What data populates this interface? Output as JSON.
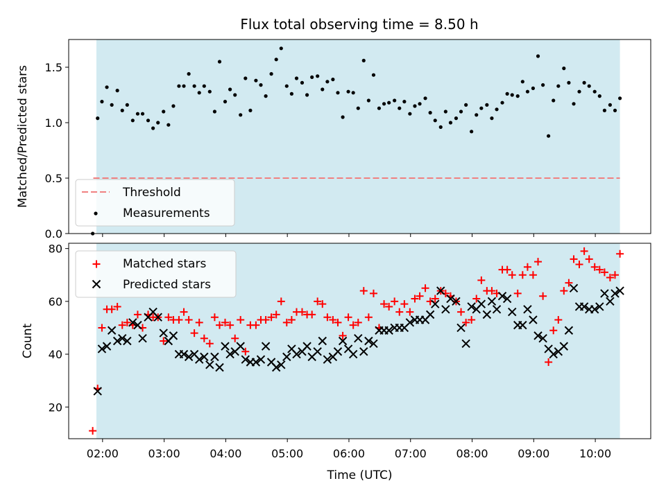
{
  "title": "Flux total observing time = 8.50 h",
  "colors": {
    "shade": "#add8e6",
    "threshold": "#f08080",
    "matched": "#ff0000",
    "predicted": "#000000",
    "measurement": "#000000"
  },
  "chart_data": [
    {
      "type": "scatter",
      "panel": "top",
      "ylabel": "Matched/Predicted stars",
      "xlabel": "",
      "xlim": [
        1.45,
        10.9
      ],
      "ylim": [
        0.0,
        1.75
      ],
      "yticks": [
        0.0,
        0.5,
        1.0,
        1.5
      ],
      "ytick_labels": [
        "0.0",
        "0.5",
        "1.0",
        "1.5"
      ],
      "shaded_span": [
        1.9,
        10.4
      ],
      "grid": false,
      "legend_placement": "lower-left",
      "threshold": {
        "name": "Threshold",
        "y": 0.5,
        "x": [
          1.85,
          10.4
        ]
      },
      "series": [
        {
          "name": "Measurements",
          "marker": "dot",
          "x": [
            1.84,
            1.92,
            1.99,
            2.07,
            2.15,
            2.24,
            2.32,
            2.4,
            2.49,
            2.57,
            2.65,
            2.74,
            2.82,
            2.9,
            2.99,
            3.07,
            3.15,
            3.24,
            3.32,
            3.4,
            3.49,
            3.57,
            3.65,
            3.74,
            3.82,
            3.9,
            3.99,
            4.07,
            4.15,
            4.24,
            4.32,
            4.4,
            4.49,
            4.57,
            4.65,
            4.74,
            4.82,
            4.9,
            4.99,
            5.07,
            5.15,
            5.24,
            5.32,
            5.4,
            5.49,
            5.57,
            5.65,
            5.74,
            5.82,
            5.9,
            5.99,
            6.07,
            6.15,
            6.24,
            6.32,
            6.4,
            6.49,
            6.57,
            6.65,
            6.74,
            6.82,
            6.9,
            6.99,
            7.07,
            7.15,
            7.24,
            7.32,
            7.4,
            7.49,
            7.57,
            7.65,
            7.74,
            7.82,
            7.9,
            7.99,
            8.07,
            8.15,
            8.24,
            8.32,
            8.4,
            8.49,
            8.57,
            8.65,
            8.74,
            8.82,
            8.9,
            8.99,
            9.07,
            9.15,
            9.24,
            9.32,
            9.4,
            9.49,
            9.57,
            9.65,
            9.74,
            9.82,
            9.9,
            9.99,
            10.07,
            10.15,
            10.24,
            10.32,
            10.4
          ],
          "y": [
            0.0,
            1.04,
            1.19,
            1.32,
            1.16,
            1.29,
            1.11,
            1.16,
            1.02,
            1.08,
            1.08,
            1.02,
            0.95,
            1.0,
            1.1,
            0.98,
            1.15,
            1.33,
            1.33,
            1.44,
            1.33,
            1.27,
            1.33,
            1.28,
            1.1,
            1.55,
            1.19,
            1.3,
            1.25,
            1.07,
            1.4,
            1.11,
            1.38,
            1.34,
            1.24,
            1.44,
            1.57,
            1.67,
            1.33,
            1.26,
            1.4,
            1.36,
            1.25,
            1.41,
            1.42,
            1.3,
            1.37,
            1.39,
            1.27,
            1.05,
            1.28,
            1.27,
            1.13,
            1.56,
            1.2,
            1.43,
            1.13,
            1.17,
            1.18,
            1.2,
            1.13,
            1.19,
            1.08,
            1.15,
            1.17,
            1.22,
            1.09,
            1.02,
            0.96,
            1.1,
            1.0,
            1.04,
            1.1,
            1.16,
            0.92,
            1.07,
            1.13,
            1.16,
            1.04,
            1.12,
            1.18,
            1.26,
            1.25,
            1.24,
            1.37,
            1.28,
            1.31,
            1.6,
            1.34,
            0.88,
            1.2,
            1.33,
            1.49,
            1.36,
            1.17,
            1.28,
            1.36,
            1.33,
            1.28,
            1.24,
            1.11,
            1.16,
            1.11,
            1.22
          ]
        }
      ]
    },
    {
      "type": "scatter",
      "panel": "bottom",
      "ylabel": "Count",
      "xlabel": "Time (UTC)",
      "xlim": [
        1.45,
        10.9
      ],
      "ylim": [
        8,
        82
      ],
      "xticks": [
        2,
        3,
        4,
        5,
        6,
        7,
        8,
        9,
        10
      ],
      "xtick_labels": [
        "02:00",
        "03:00",
        "04:00",
        "05:00",
        "06:00",
        "07:00",
        "08:00",
        "09:00",
        "10:00"
      ],
      "yticks": [
        20,
        40,
        60,
        80
      ],
      "ytick_labels": [
        "20",
        "40",
        "60",
        "80"
      ],
      "shaded_span": [
        1.9,
        10.4
      ],
      "grid": false,
      "legend_placement": "upper-left",
      "series": [
        {
          "name": "Matched stars",
          "marker": "plus",
          "x": [
            1.84,
            1.92,
            1.99,
            2.07,
            2.15,
            2.24,
            2.32,
            2.4,
            2.49,
            2.57,
            2.65,
            2.74,
            2.82,
            2.9,
            2.99,
            3.07,
            3.15,
            3.24,
            3.32,
            3.4,
            3.49,
            3.57,
            3.65,
            3.74,
            3.82,
            3.9,
            3.99,
            4.07,
            4.15,
            4.24,
            4.32,
            4.4,
            4.49,
            4.57,
            4.65,
            4.74,
            4.82,
            4.9,
            4.99,
            5.07,
            5.15,
            5.24,
            5.32,
            5.4,
            5.49,
            5.57,
            5.65,
            5.74,
            5.82,
            5.9,
            5.99,
            6.07,
            6.15,
            6.24,
            6.32,
            6.4,
            6.49,
            6.57,
            6.65,
            6.74,
            6.82,
            6.9,
            6.99,
            7.07,
            7.15,
            7.24,
            7.32,
            7.4,
            7.49,
            7.57,
            7.65,
            7.74,
            7.82,
            7.9,
            7.99,
            8.07,
            8.15,
            8.24,
            8.32,
            8.4,
            8.49,
            8.57,
            8.65,
            8.74,
            8.82,
            8.9,
            8.99,
            9.07,
            9.15,
            9.24,
            9.32,
            9.4,
            9.49,
            9.57,
            9.65,
            9.74,
            9.82,
            9.9,
            9.99,
            10.07,
            10.15,
            10.24,
            10.32,
            10.4
          ],
          "y": [
            11,
            27,
            50,
            57,
            57,
            58,
            51,
            52,
            51,
            55,
            50,
            55,
            54,
            54,
            45,
            54,
            53,
            53,
            56,
            53,
            48,
            52,
            46,
            44,
            54,
            51,
            52,
            51,
            46,
            53,
            41,
            51,
            51,
            53,
            53,
            54,
            55,
            60,
            52,
            53,
            56,
            56,
            55,
            55,
            60,
            59,
            54,
            53,
            52,
            47,
            54,
            51,
            52,
            64,
            54,
            63,
            50,
            59,
            58,
            60,
            56,
            59,
            56,
            61,
            62,
            65,
            60,
            61,
            64,
            63,
            62,
            60,
            56,
            52,
            53,
            61,
            68,
            64,
            64,
            63,
            72,
            72,
            70,
            63,
            70,
            73,
            70,
            75,
            62,
            37,
            49,
            53,
            64,
            67,
            76,
            74,
            79,
            76,
            73,
            72,
            71,
            69,
            70,
            78
          ]
        },
        {
          "name": "Predicted stars",
          "marker": "x",
          "x": [
            1.92,
            1.99,
            2.07,
            2.15,
            2.24,
            2.32,
            2.4,
            2.49,
            2.57,
            2.65,
            2.74,
            2.82,
            2.9,
            2.99,
            3.07,
            3.15,
            3.24,
            3.32,
            3.4,
            3.49,
            3.57,
            3.65,
            3.74,
            3.82,
            3.9,
            3.99,
            4.07,
            4.15,
            4.24,
            4.32,
            4.4,
            4.49,
            4.57,
            4.65,
            4.74,
            4.82,
            4.9,
            4.99,
            5.07,
            5.15,
            5.24,
            5.32,
            5.4,
            5.49,
            5.57,
            5.65,
            5.74,
            5.82,
            5.9,
            5.99,
            6.07,
            6.15,
            6.24,
            6.32,
            6.4,
            6.49,
            6.57,
            6.65,
            6.74,
            6.82,
            6.9,
            6.99,
            7.07,
            7.15,
            7.24,
            7.32,
            7.4,
            7.49,
            7.57,
            7.65,
            7.74,
            7.82,
            7.9,
            7.99,
            8.07,
            8.15,
            8.24,
            8.32,
            8.4,
            8.49,
            8.57,
            8.65,
            8.74,
            8.82,
            8.9,
            8.99,
            9.07,
            9.15,
            9.24,
            9.32,
            9.4,
            9.49,
            9.57,
            9.65,
            9.74,
            9.82,
            9.9,
            9.99,
            10.07,
            10.15,
            10.24,
            10.32,
            10.4
          ],
          "y": [
            26,
            42,
            43,
            49,
            45,
            46,
            45,
            52,
            51,
            46,
            54,
            56,
            54,
            48,
            45,
            47,
            40,
            40,
            39,
            40,
            38,
            39,
            36,
            39,
            35,
            43,
            40,
            41,
            43,
            38,
            37,
            37,
            38,
            43,
            37,
            35,
            36,
            39,
            42,
            40,
            41,
            43,
            39,
            41,
            45,
            38,
            39,
            41,
            45,
            42,
            40,
            46,
            41,
            45,
            44,
            49,
            49,
            49,
            50,
            50,
            50,
            52,
            53,
            53,
            53,
            55,
            59,
            64,
            57,
            61,
            60,
            50,
            44,
            58,
            57,
            59,
            55,
            60,
            57,
            62,
            61,
            56,
            51,
            51,
            57,
            53,
            47,
            46,
            42,
            40,
            41,
            43,
            49,
            65,
            58,
            58,
            57,
            57,
            58,
            63,
            60,
            63,
            64
          ]
        }
      ]
    }
  ]
}
